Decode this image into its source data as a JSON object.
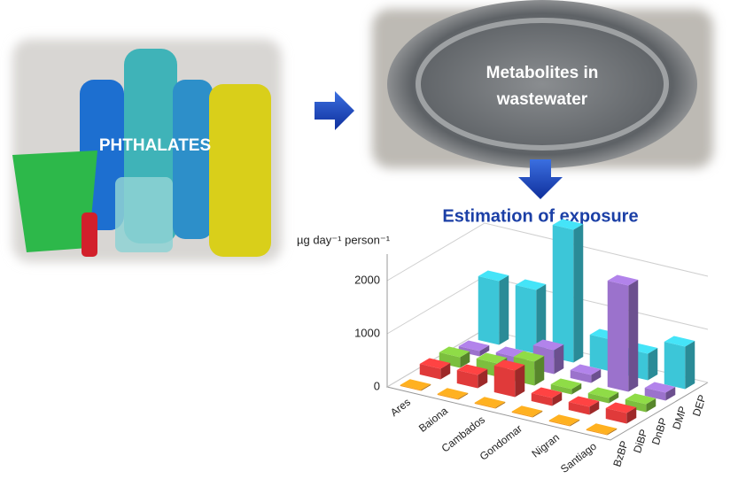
{
  "left_image": {
    "label": "PHTHALATES"
  },
  "right_image": {
    "label_lines": [
      "Metabolites in",
      "wastewater"
    ]
  },
  "heading": "Estimation of exposure",
  "chart_data": {
    "type": "bar3d",
    "y_label": "µg day⁻¹ person⁻¹",
    "categories": [
      "Ares",
      "Baiona",
      "Cambados",
      "Gondomar",
      "Nigran",
      "Santiago"
    ],
    "series": [
      {
        "name": "BzBP",
        "color": "#f39a1c",
        "values": [
          20,
          20,
          20,
          20,
          20,
          20
        ]
      },
      {
        "name": "DiBP",
        "color": "#e03a3a",
        "values": [
          200,
          250,
          500,
          150,
          150,
          200
        ]
      },
      {
        "name": "DnBP",
        "color": "#7cbf3e",
        "values": [
          200,
          250,
          450,
          100,
          100,
          150
        ]
      },
      {
        "name": "DMP",
        "color": "#9b72cc",
        "values": [
          100,
          150,
          450,
          150,
          2000,
          150
        ]
      },
      {
        "name": "DEP",
        "color": "#3cc6d8",
        "values": [
          1200,
          1200,
          2500,
          600,
          500,
          800
        ]
      }
    ],
    "ylim": [
      0,
      2500
    ],
    "yticks": [
      0,
      1000,
      2000
    ],
    "grid": true
  }
}
